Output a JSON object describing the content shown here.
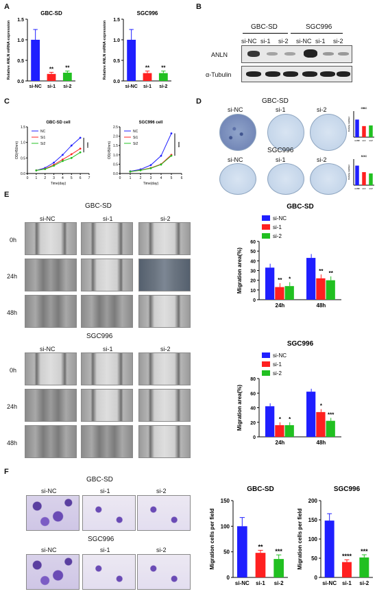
{
  "panels": {
    "A": "A",
    "B": "B",
    "C": "C",
    "D": "D",
    "E": "E",
    "F": "F"
  },
  "panelA": {
    "chart1_title": "GBC-SD",
    "chart2_title": "SGC996",
    "ylabel": "Relative ANLN mRNA expression",
    "ticks": [
      "0.0",
      "0.5",
      "1.0",
      "1.5"
    ],
    "categories": [
      "si-NC",
      "si-1",
      "si-2"
    ],
    "sig": [
      "**",
      "**"
    ]
  },
  "panelB": {
    "group1": "GBC-SD",
    "group2": "SGC996",
    "lanes": [
      "si-NC",
      "si-1",
      "si-2",
      "si-NC",
      "si-1",
      "si-2"
    ],
    "row1": "ANLN",
    "row2": "α-Tubulin"
  },
  "panelC": {
    "chart1_title": "GBC-SD cell",
    "chart2_title": "SGC996 cell",
    "ylabel": "OD(450nm)",
    "xlabel": "Time(day)",
    "legend": [
      "NC",
      "Si1",
      "Si2"
    ],
    "xticks1": [
      "0",
      "1",
      "2",
      "3",
      "4",
      "5",
      "6",
      "7"
    ],
    "xticks2": [
      "0",
      "1",
      "2",
      "3",
      "4",
      "5",
      "6"
    ],
    "yticks": [
      "0.0",
      "0.5",
      "1.0",
      "1.5",
      "2.0",
      "2.5"
    ],
    "sig1": "****",
    "sig2": "****"
  },
  "panelD": {
    "row1_title": "GBC-SD",
    "row2_title": "SGC996",
    "labels": [
      "si-NC",
      "si-1",
      "si-2"
    ],
    "bar1_title": "GBC",
    "bar2_title": "SGC",
    "ylabel": "Colony number",
    "cats": [
      "si-NC",
      "si-1",
      "si-2"
    ]
  },
  "panelE": {
    "group1": "GBC-SD",
    "group2": "SGC996",
    "cols": [
      "si-NC",
      "si-1",
      "si-2"
    ],
    "rows": [
      "0h",
      "24h",
      "48h"
    ],
    "chart1_title": "GBC-SD",
    "chart2_title": "SGC996",
    "ylabel": "Migration area(%)",
    "legend": [
      "si-NC",
      "si-1",
      "si-2"
    ],
    "xcats": [
      "24h",
      "48h"
    ],
    "yticks1": [
      "0",
      "10",
      "20",
      "30",
      "40",
      "50",
      "60"
    ],
    "yticks2": [
      "0",
      "20",
      "40",
      "60",
      "80"
    ],
    "sig1": [
      "**",
      "*",
      "**",
      "**"
    ],
    "sig2": [
      "*",
      "*",
      "*",
      "***"
    ]
  },
  "panelF": {
    "group1": "GBC-SD",
    "group2": "SGC996",
    "cols": [
      "si-NC",
      "si-1",
      "si-2"
    ],
    "chart1_title": "GBC-SD",
    "chart2_title": "SGC996",
    "ylabel": "Migration cells per field",
    "cats": [
      "si-NC",
      "si-1",
      "si-2"
    ],
    "yticks1": [
      "0",
      "50",
      "100",
      "150"
    ],
    "yticks2": [
      "0",
      "50",
      "100",
      "150",
      "200"
    ],
    "sig1": [
      "**",
      "***"
    ],
    "sig2": [
      "****",
      "***"
    ]
  },
  "chart_data": [
    {
      "type": "bar",
      "title": "GBC-SD",
      "ylabel": "Relative ANLN mRNA expression",
      "categories": [
        "si-NC",
        "si-1",
        "si-2"
      ],
      "values": [
        1.0,
        0.17,
        0.2
      ],
      "errors": [
        0.25,
        0.04,
        0.04
      ],
      "colors": [
        "#1f1fff",
        "#ff2020",
        "#21c021"
      ],
      "ylim": [
        0,
        1.5
      ]
    },
    {
      "type": "bar",
      "title": "SGC996",
      "ylabel": "Relative ANLN mRNA expression",
      "categories": [
        "si-NC",
        "si-1",
        "si-2"
      ],
      "values": [
        1.0,
        0.19,
        0.19
      ],
      "errors": [
        0.25,
        0.05,
        0.05
      ],
      "colors": [
        "#1f1fff",
        "#ff2020",
        "#21c021"
      ],
      "ylim": [
        0,
        1.5
      ]
    },
    {
      "type": "line",
      "title": "GBC-SD cell",
      "xlabel": "Time(day)",
      "ylabel": "OD(450nm)",
      "x": [
        1,
        2,
        3,
        4,
        5,
        6
      ],
      "ylim": [
        0,
        1.5
      ],
      "xlim": [
        0,
        7
      ],
      "series": [
        {
          "name": "NC",
          "values": [
            0.1,
            0.18,
            0.35,
            0.6,
            0.9,
            1.15
          ]
        },
        {
          "name": "Si1",
          "values": [
            0.1,
            0.15,
            0.28,
            0.45,
            0.62,
            0.8
          ]
        },
        {
          "name": "Si2",
          "values": [
            0.1,
            0.14,
            0.25,
            0.4,
            0.5,
            0.68
          ]
        }
      ]
    },
    {
      "type": "line",
      "title": "SGC996 cell",
      "xlabel": "Time(day)",
      "ylabel": "OD(450nm)",
      "x": [
        1,
        2,
        3,
        4,
        5
      ],
      "ylim": [
        0,
        2.5
      ],
      "xlim": [
        0,
        6
      ],
      "series": [
        {
          "name": "NC",
          "values": [
            0.12,
            0.22,
            0.45,
            0.95,
            2.15
          ]
        },
        {
          "name": "Si1",
          "values": [
            0.1,
            0.18,
            0.3,
            0.5,
            1.0
          ]
        },
        {
          "name": "Si2",
          "values": [
            0.1,
            0.17,
            0.28,
            0.48,
            0.95
          ]
        }
      ]
    },
    {
      "type": "bar",
      "title": "GBC",
      "ylabel": "Colony number",
      "categories": [
        "si-NC",
        "si-1",
        "si-2"
      ],
      "values": [
        27,
        17,
        18
      ],
      "colors": [
        "#1f1fff",
        "#ff2020",
        "#21c021"
      ],
      "ylim": [
        0,
        40
      ]
    },
    {
      "type": "bar",
      "title": "SGC",
      "ylabel": "Colony number",
      "categories": [
        "si-NC",
        "si-1",
        "si-2"
      ],
      "values": [
        60,
        40,
        36
      ],
      "colors": [
        "#1f1fff",
        "#ff2020",
        "#21c021"
      ],
      "ylim": [
        0,
        80
      ]
    },
    {
      "type": "bar",
      "title": "GBC-SD",
      "ylabel": "Migration area(%)",
      "categories": [
        "24h",
        "48h"
      ],
      "ylim": [
        0,
        60
      ],
      "series": [
        {
          "name": "si-NC",
          "values": [
            33,
            43
          ]
        },
        {
          "name": "si-1",
          "values": [
            13,
            22
          ]
        },
        {
          "name": "si-2",
          "values": [
            14,
            20
          ]
        }
      ]
    },
    {
      "type": "bar",
      "title": "SGC996",
      "ylabel": "Migration area(%)",
      "categories": [
        "24h",
        "48h"
      ],
      "ylim": [
        0,
        80
      ],
      "series": [
        {
          "name": "si-NC",
          "values": [
            42,
            62
          ]
        },
        {
          "name": "si-1",
          "values": [
            16,
            34
          ]
        },
        {
          "name": "si-2",
          "values": [
            16,
            22
          ]
        }
      ]
    },
    {
      "type": "bar",
      "title": "GBC-SD",
      "ylabel": "Migration cells per field",
      "categories": [
        "si-NC",
        "si-1",
        "si-2"
      ],
      "values": [
        100,
        48,
        36
      ],
      "errors": [
        17,
        5,
        8
      ],
      "colors": [
        "#1f1fff",
        "#ff2020",
        "#21c021"
      ],
      "ylim": [
        0,
        150
      ]
    },
    {
      "type": "bar",
      "title": "SGC996",
      "ylabel": "Migration cells per field",
      "categories": [
        "si-NC",
        "si-1",
        "si-2"
      ],
      "values": [
        148,
        40,
        52
      ],
      "errors": [
        18,
        6,
        7
      ],
      "colors": [
        "#1f1fff",
        "#ff2020",
        "#21c021"
      ],
      "ylim": [
        0,
        200
      ]
    }
  ]
}
